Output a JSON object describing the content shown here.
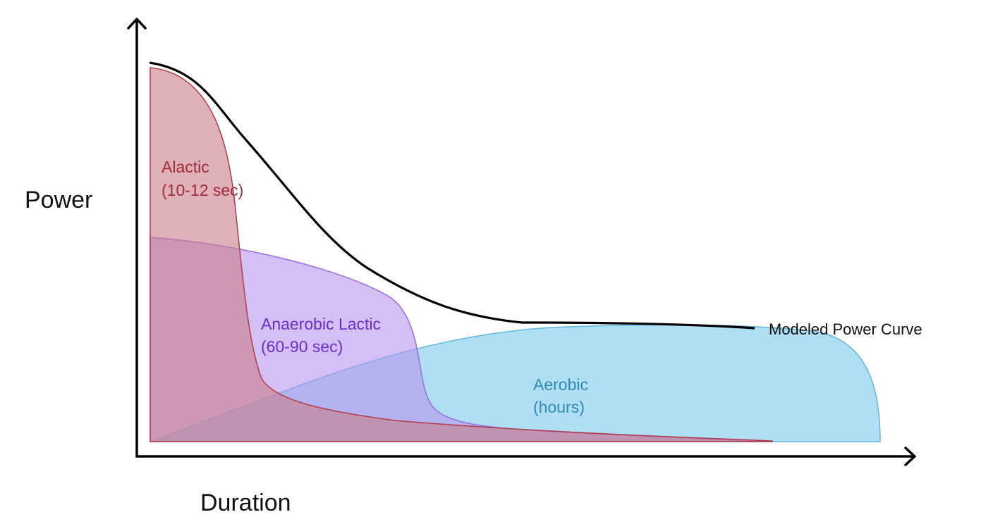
{
  "axes": {
    "y_label": "Power",
    "x_label": "Duration"
  },
  "zones": [
    {
      "id": "alactic",
      "label_lines": [
        "Alactic",
        "(10-12 sec)"
      ],
      "fill": "#c97f8c",
      "stroke": "#b33b4a",
      "text_color": "#a32c3a"
    },
    {
      "id": "anaerobic-lactic",
      "label_lines": [
        "Anaerobic Lactic",
        "(60-90 sec)"
      ],
      "fill": "#b896ee",
      "stroke": "#9b6be0",
      "text_color": "#6a2fc7"
    },
    {
      "id": "aerobic",
      "label_lines": [
        "Aerobic",
        "(hours)"
      ],
      "fill": "#8ad0ee",
      "stroke": "#5fb7e0",
      "text_color": "#2f8bb4"
    }
  ],
  "modeled_curve": {
    "label": "Modeled Power Curve",
    "color": "#000000"
  }
}
